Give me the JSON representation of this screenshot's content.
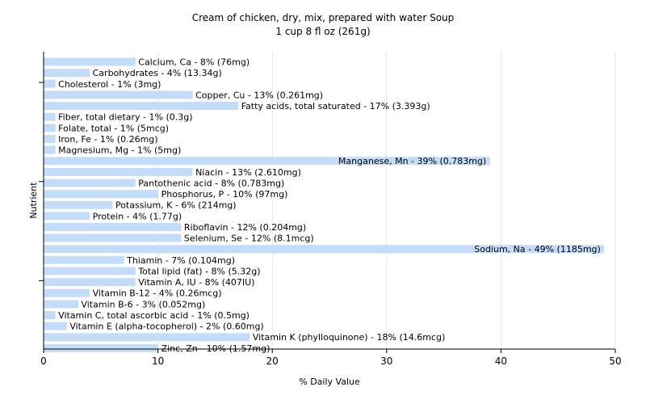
{
  "chart_data": {
    "type": "bar",
    "orientation": "horizontal",
    "title": "Cream of chicken, dry, mix, prepared with water Soup",
    "subtitle": "1 cup 8 fl oz (261g)",
    "xlabel": "% Daily Value",
    "ylabel": "Nutrient",
    "xlim": [
      0,
      50
    ],
    "xticks": [
      0,
      10,
      20,
      30,
      40,
      50
    ],
    "grid": "vertical",
    "bar_color": "#c5dcf8",
    "bars": [
      {
        "label": "Calcium, Ca - 8% (76mg)",
        "value": 8
      },
      {
        "label": "Carbohydrates - 4% (13.34g)",
        "value": 4
      },
      {
        "label": "Cholesterol - 1% (3mg)",
        "value": 1
      },
      {
        "label": "Copper, Cu - 13% (0.261mg)",
        "value": 13
      },
      {
        "label": "Fatty acids, total saturated - 17% (3.393g)",
        "value": 17
      },
      {
        "label": "Fiber, total dietary - 1% (0.3g)",
        "value": 1
      },
      {
        "label": "Folate, total - 1% (5mcg)",
        "value": 1
      },
      {
        "label": "Iron, Fe - 1% (0.26mg)",
        "value": 1
      },
      {
        "label": "Magnesium, Mg - 1% (5mg)",
        "value": 1
      },
      {
        "label": "Manganese, Mn - 39% (0.783mg)",
        "value": 39
      },
      {
        "label": "Niacin - 13% (2.610mg)",
        "value": 13
      },
      {
        "label": "Pantothenic acid - 8% (0.783mg)",
        "value": 8
      },
      {
        "label": "Phosphorus, P - 10% (97mg)",
        "value": 10
      },
      {
        "label": "Potassium, K - 6% (214mg)",
        "value": 6
      },
      {
        "label": "Protein - 4% (1.77g)",
        "value": 4
      },
      {
        "label": "Riboflavin - 12% (0.204mg)",
        "value": 12
      },
      {
        "label": "Selenium, Se - 12% (8.1mcg)",
        "value": 12
      },
      {
        "label": "Sodium, Na - 49% (1185mg)",
        "value": 49
      },
      {
        "label": "Thiamin - 7% (0.104mg)",
        "value": 7
      },
      {
        "label": "Total lipid (fat) - 8% (5.32g)",
        "value": 8
      },
      {
        "label": "Vitamin A, IU - 8% (407IU)",
        "value": 8
      },
      {
        "label": "Vitamin B-12 - 4% (0.26mcg)",
        "value": 4
      },
      {
        "label": "Vitamin B-6 - 3% (0.052mg)",
        "value": 3
      },
      {
        "label": "Vitamin C, total ascorbic acid - 1% (0.5mg)",
        "value": 1
      },
      {
        "label": "Vitamin E (alpha-tocopherol) - 2% (0.60mg)",
        "value": 2
      },
      {
        "label": "Vitamin K (phylloquinone) - 18% (14.6mcg)",
        "value": 18
      },
      {
        "label": "Zinc, Zn - 10% (1.57mg)",
        "value": 10
      }
    ]
  }
}
